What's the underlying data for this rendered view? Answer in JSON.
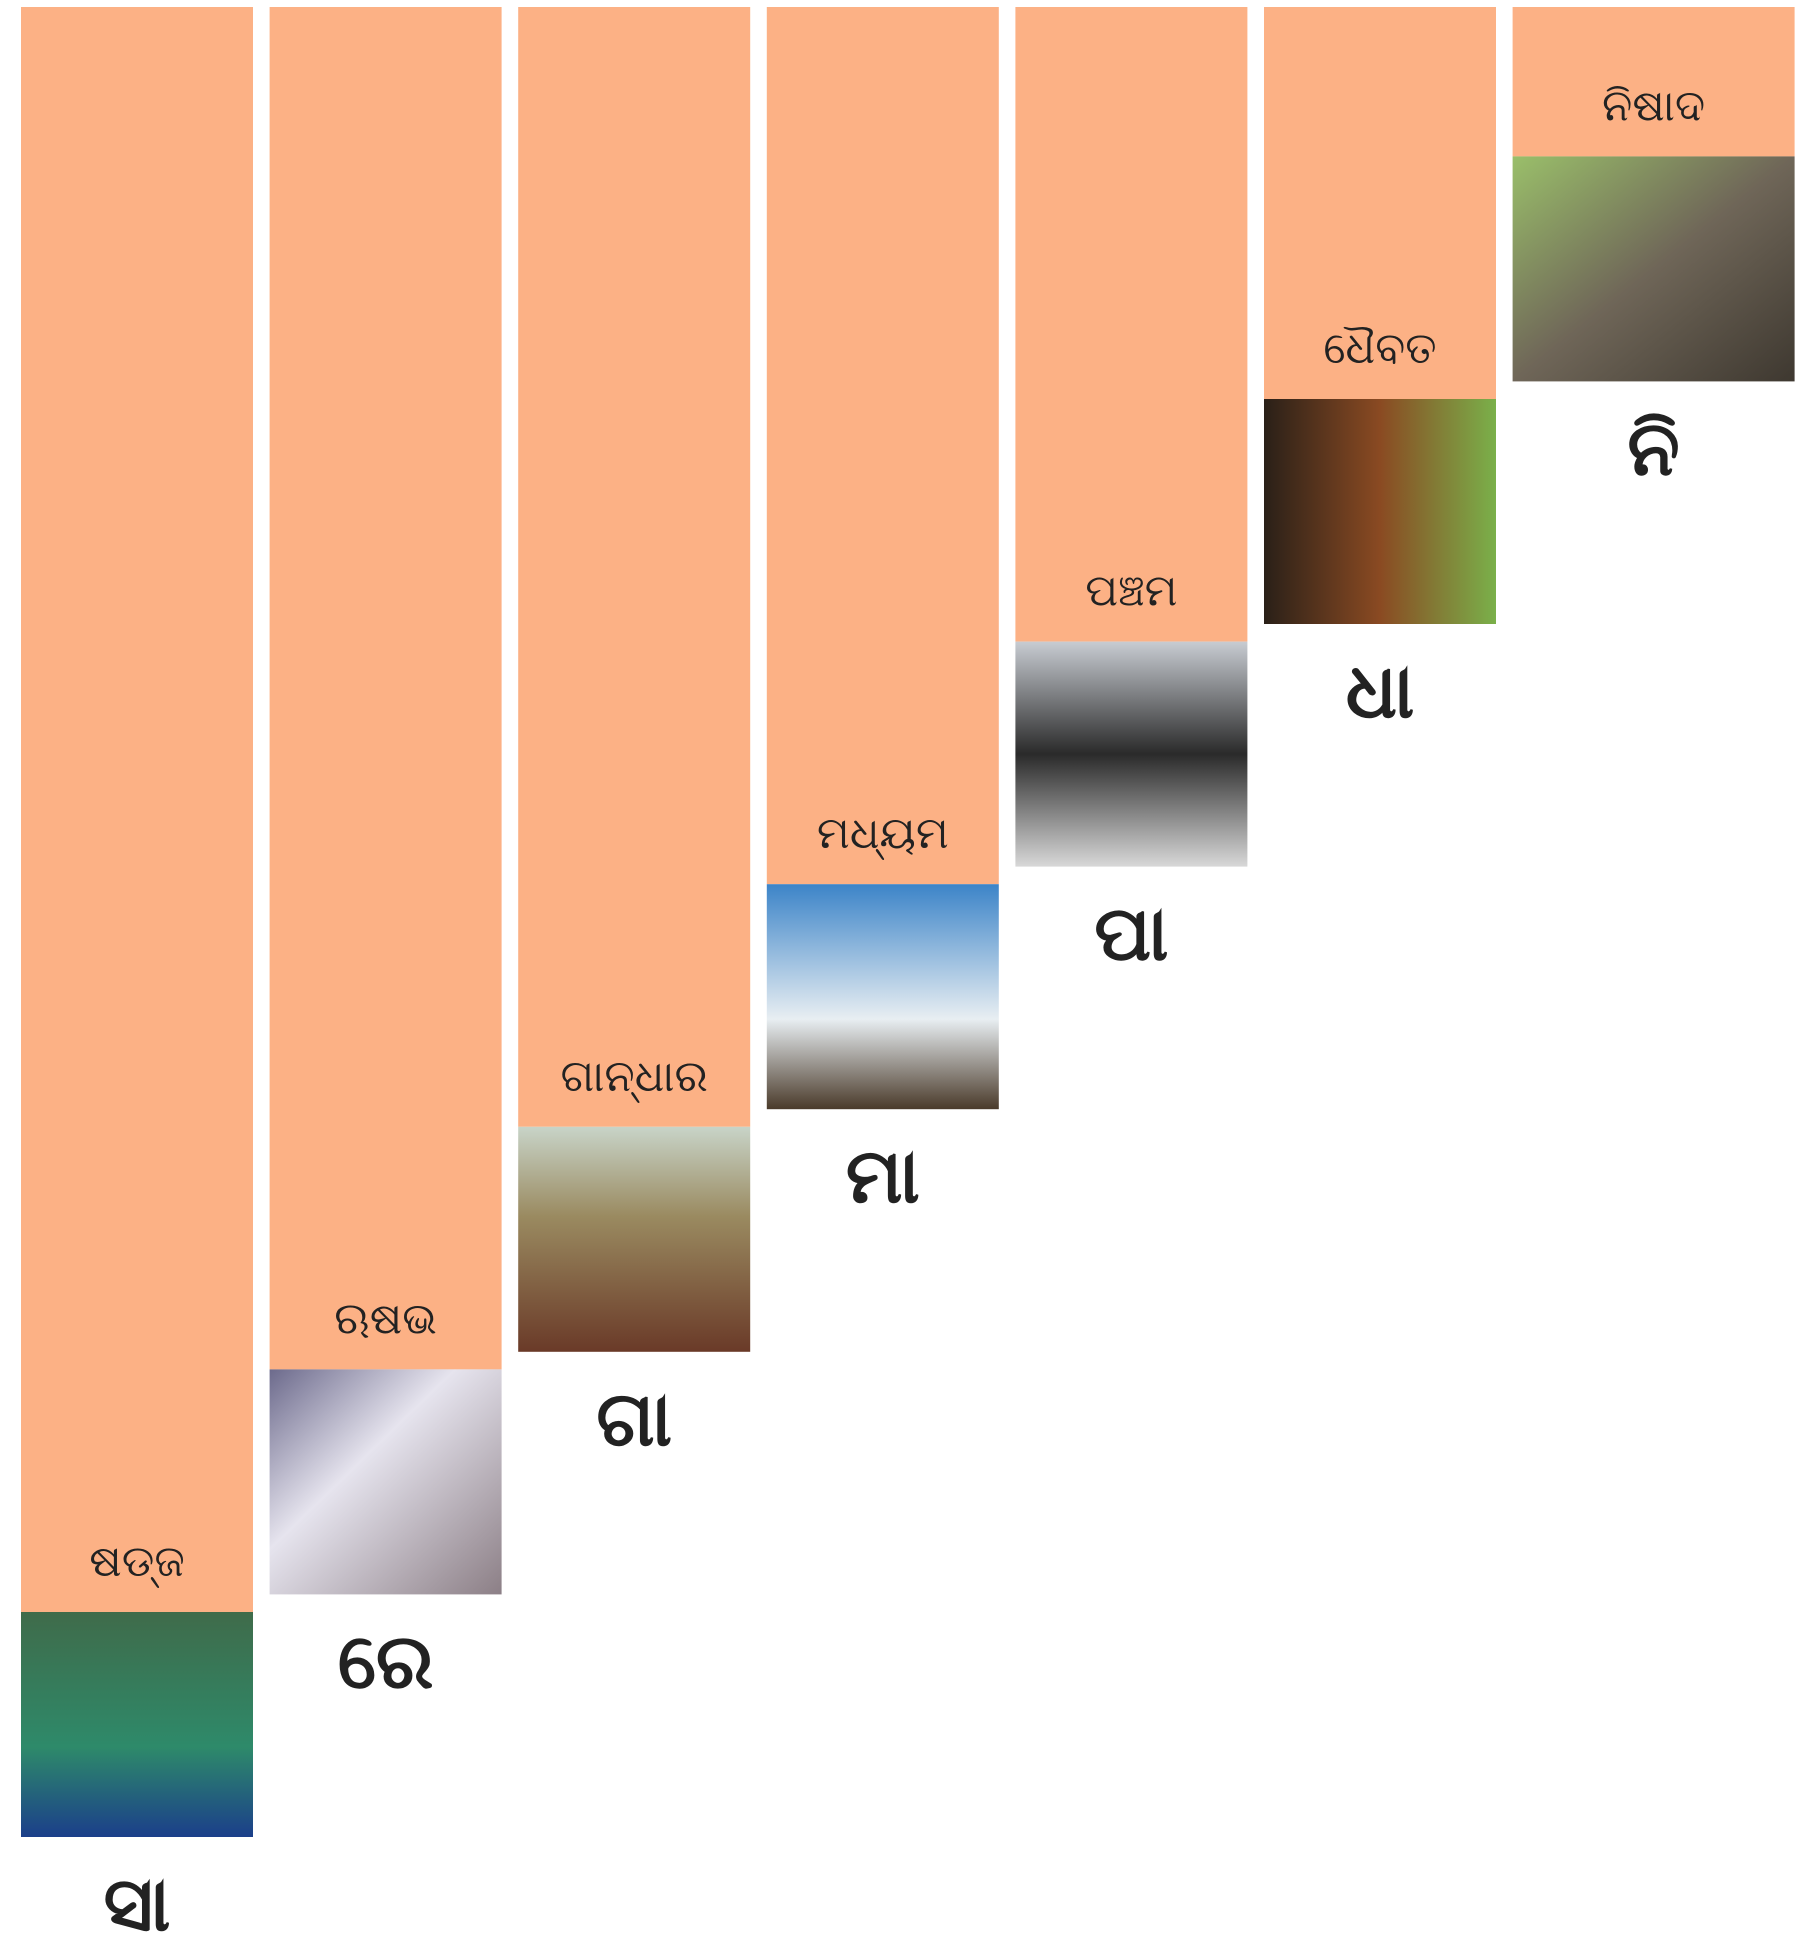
{
  "columns": [
    {
      "name": "ଷଡ୍ଜ",
      "note": "ସା"
    },
    {
      "name": "ଋଷଭ",
      "note": "ରେ"
    },
    {
      "name": "ଗାନ୍ଧାର",
      "note": "ଗା"
    },
    {
      "name": "ମଧ୍ୟମ",
      "note": "ମା"
    },
    {
      "name": "ପଞ୍ଚମ",
      "note": "ପା"
    },
    {
      "name": "ଧୈବତ",
      "note": "ଧା"
    },
    {
      "name": "ନିଷାଦ",
      "note": "ନି"
    }
  ]
}
